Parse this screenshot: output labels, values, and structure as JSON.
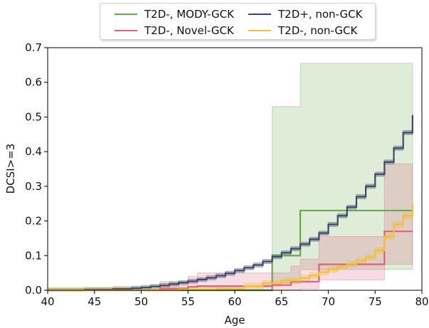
{
  "chart_data": {
    "type": "line",
    "xlabel": "Age",
    "ylabel": "DCSI>=3",
    "xlim": [
      40,
      80
    ],
    "ylim": [
      0,
      0.7
    ],
    "xticks": [
      40,
      45,
      50,
      55,
      60,
      65,
      70,
      75,
      80
    ],
    "yticks": [
      0.0,
      0.1,
      0.2,
      0.3,
      0.4,
      0.5,
      0.6,
      0.7
    ],
    "xtick_labels": [
      "40",
      "45",
      "50",
      "55",
      "60",
      "65",
      "70",
      "75",
      "80"
    ],
    "ytick_labels": [
      "0.0",
      "0.1",
      "0.2",
      "0.3",
      "0.4",
      "0.5",
      "0.6",
      "0.7"
    ],
    "grid": false,
    "legend_position": "top-center",
    "legend_order": [
      0,
      2,
      1,
      3
    ],
    "series": [
      {
        "name": "T2D-, MODY-GCK",
        "color": "#6aa84f",
        "step": true,
        "x": [
          40,
          64,
          67,
          79
        ],
        "y": [
          0,
          0.1,
          0.23,
          0.23
        ],
        "band_x": [
          64,
          67,
          79
        ],
        "band_lower": [
          0.02,
          0.06,
          0.06
        ],
        "band_upper": [
          0.53,
          0.655,
          0.655
        ]
      },
      {
        "name": "T2D+, non-GCK",
        "color": "#3b4a6b",
        "step": true,
        "x": [
          40,
          44,
          47,
          49,
          50,
          51,
          52,
          53,
          54,
          55,
          56,
          57,
          58,
          59,
          60,
          61,
          62,
          63,
          64,
          65,
          66,
          67,
          68,
          69,
          70,
          71,
          72,
          73,
          74,
          75,
          76,
          77,
          78,
          79
        ],
        "y": [
          0,
          0.002,
          0.004,
          0.006,
          0.008,
          0.011,
          0.014,
          0.018,
          0.022,
          0.026,
          0.031,
          0.036,
          0.042,
          0.049,
          0.057,
          0.065,
          0.073,
          0.083,
          0.097,
          0.108,
          0.12,
          0.133,
          0.147,
          0.165,
          0.19,
          0.215,
          0.24,
          0.27,
          0.3,
          0.335,
          0.37,
          0.41,
          0.455,
          0.505
        ],
        "band_halfwidth": 0.006
      },
      {
        "name": "T2D-, Novel-GCK",
        "color": "#e06080",
        "step": true,
        "x": [
          40,
          52,
          55,
          56,
          64,
          66,
          69,
          76,
          79
        ],
        "y": [
          0,
          0.005,
          0.01,
          0.012,
          0.015,
          0.025,
          0.075,
          0.17,
          0.17
        ],
        "band_x": [
          52,
          55,
          56,
          64,
          66,
          67,
          69,
          76,
          79
        ],
        "band_lower": [
          0,
          0,
          0,
          0,
          0,
          0.005,
          0.03,
          0.075,
          0.075
        ],
        "band_upper": [
          0.025,
          0.04,
          0.05,
          0.05,
          0.07,
          0.09,
          0.155,
          0.365,
          0.365
        ]
      },
      {
        "name": "T2D-, non-GCK",
        "color": "#f2c038",
        "step": true,
        "x": [
          40,
          54,
          58,
          61,
          63,
          65,
          67,
          68,
          69,
          70,
          71,
          72,
          73,
          74,
          75,
          76,
          77,
          78,
          79
        ],
        "y": [
          0,
          0.002,
          0.005,
          0.012,
          0.02,
          0.028,
          0.035,
          0.043,
          0.052,
          0.06,
          0.068,
          0.076,
          0.085,
          0.095,
          0.115,
          0.155,
          0.19,
          0.215,
          0.25
        ],
        "band_halfwidth": 0.008
      }
    ]
  }
}
